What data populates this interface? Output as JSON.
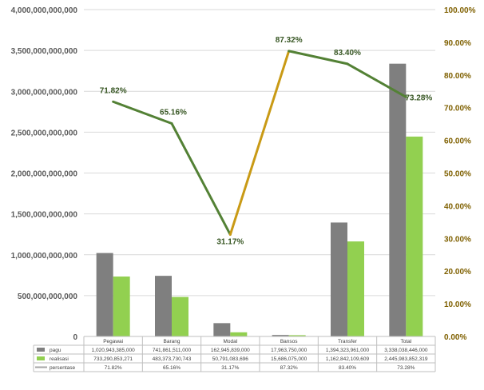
{
  "chart_data": {
    "type": "bar",
    "categories": [
      "Pegawai",
      "Barang",
      "Modal",
      "Bansos",
      "Transfer",
      "Total"
    ],
    "series": [
      {
        "name": "pagu",
        "kind": "bar",
        "axis": "left",
        "color": "#7f7f7f",
        "values": [
          1020943385000,
          741861511000,
          162945839000,
          17963750000,
          1394323961000,
          3338038446000
        ],
        "labels": [
          "1,020,943,385,000",
          "741,861,511,000",
          "162,945,839,000",
          "17,963,750,000",
          "1,394,323,961,000",
          "3,338,038,446,000"
        ]
      },
      {
        "name": "realisasi",
        "kind": "bar",
        "axis": "left",
        "color": "#92d050",
        "values": [
          733290853271,
          483373730743,
          50791083696,
          15686075000,
          1162842109609,
          2445983852319
        ],
        "labels": [
          "733,290,853,271",
          "483,373,730,743",
          "50,791,083,696",
          "15,686,075,000",
          "1,162,842,109,609",
          "2,445,983,852,319"
        ]
      },
      {
        "name": "persentase",
        "kind": "line",
        "axis": "right",
        "color": "#c99a15",
        "color_down": "#538135",
        "values": [
          71.82,
          65.16,
          31.17,
          87.32,
          83.4,
          73.28
        ],
        "labels": [
          "71.82%",
          "65.16%",
          "31.17%",
          "87.32%",
          "83.40%",
          "73.28%"
        ]
      }
    ],
    "left_axis": {
      "ylim": [
        0,
        4000000000000
      ],
      "ticks": [
        "0",
        "500,000,000,000",
        "1,000,000,000,000",
        "1,500,000,000,000",
        "2,000,000,000,000",
        "2,500,000,000,000",
        "3,000,000,000,000",
        "3,500,000,000,000",
        "4,000,000,000,000"
      ]
    },
    "right_axis": {
      "ylim": [
        0,
        100
      ],
      "ticks": [
        "0.00%",
        "10.00%",
        "20.00%",
        "30.00%",
        "40.00%",
        "50.00%",
        "60.00%",
        "70.00%",
        "80.00%",
        "90.00%",
        "100.00%"
      ]
    },
    "data_table": true,
    "legend_placement": "data-table",
    "colors": {
      "axis_text_left": "#595959",
      "axis_text_right": "#7f6000",
      "point_labels": "#375623",
      "gridline": "#d9d9d9"
    }
  }
}
